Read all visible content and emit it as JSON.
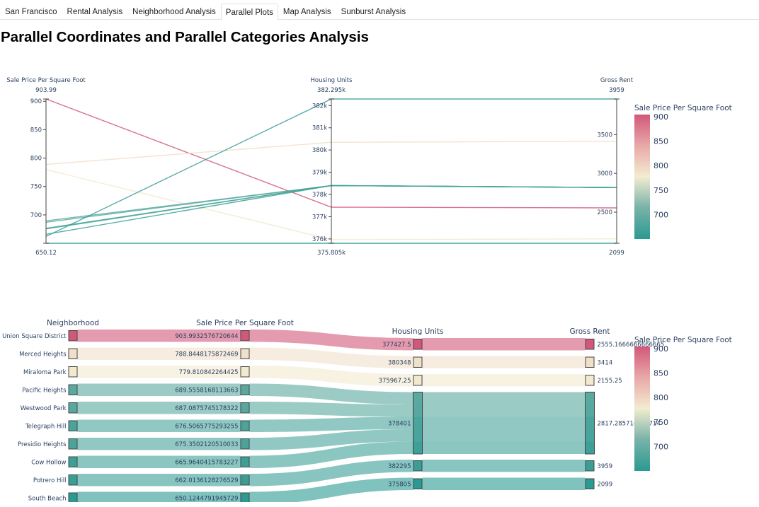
{
  "tabs": [
    {
      "label": "San Francisco",
      "active": false
    },
    {
      "label": "Rental Analysis",
      "active": false
    },
    {
      "label": "Neighborhood Analysis",
      "active": false
    },
    {
      "label": "Parallel Plots",
      "active": true
    },
    {
      "label": "Map Analysis",
      "active": false
    },
    {
      "label": "Sunburst Analysis",
      "active": false
    }
  ],
  "page_title": "Parallel Coordinates and Parallel Categories Analysis",
  "colors": {
    "scale": [
      "#2a9a92",
      "#78b2a8",
      "#f2ecd0",
      "#e8a8a8",
      "#d2587a"
    ],
    "ribbon_opacity": 0.6
  },
  "chart_data": [
    {
      "type": "parallel_coordinates",
      "colorbar_title": "Sale Price Per Square Foot",
      "colorbar_range": [
        650.12,
        903.99
      ],
      "colorbar_ticks": [
        700,
        750,
        800,
        850,
        900
      ],
      "dimensions": [
        {
          "label": "Sale Price Per Square Foot",
          "range": [
            650.12,
            903.99
          ],
          "range_labels": [
            "903.99",
            "650.12"
          ],
          "ticks": [
            700,
            750,
            800,
            850,
            900
          ],
          "tick_labels": [
            "700",
            "750",
            "800",
            "850",
            "900"
          ]
        },
        {
          "label": "Housing Units",
          "range": [
            375805,
            382295
          ],
          "range_labels": [
            "382.295k",
            "375.805k"
          ],
          "ticks": [
            376000,
            377000,
            378000,
            379000,
            380000,
            381000,
            382000
          ],
          "tick_labels": [
            "376k",
            "377k",
            "378k",
            "379k",
            "380k",
            "381k",
            "382k"
          ]
        },
        {
          "label": "Gross Rent",
          "range": [
            2099,
            3959
          ],
          "range_labels": [
            "3959",
            "2099"
          ],
          "ticks": [
            2500,
            3000,
            3500
          ],
          "tick_labels": [
            "2500",
            "3000",
            "3500"
          ]
        }
      ],
      "lines": [
        {
          "values": [
            903.99,
            377427.5,
            2555.17
          ]
        },
        {
          "values": [
            788.84,
            380348,
            3414
          ]
        },
        {
          "values": [
            779.81,
            375967.25,
            2155.25
          ]
        },
        {
          "values": [
            689.56,
            378401,
            2817.29
          ]
        },
        {
          "values": [
            687.09,
            378401,
            2817.29
          ]
        },
        {
          "values": [
            676.51,
            378401,
            2817.29
          ]
        },
        {
          "values": [
            675.35,
            378401,
            2817.29
          ]
        },
        {
          "values": [
            665.96,
            378401,
            2817.29
          ]
        },
        {
          "values": [
            662.01,
            382295,
            3959
          ]
        },
        {
          "values": [
            650.12,
            375805,
            2099
          ]
        }
      ]
    },
    {
      "type": "parallel_categories",
      "colorbar_title": "Sale Price Per Square Foot",
      "colorbar_range": [
        650.12,
        903.99
      ],
      "colorbar_ticks": [
        700,
        750,
        800,
        850,
        900
      ],
      "dimensions": [
        {
          "label": "Neighborhood",
          "categories": [
            "Union Square District",
            "Merced Heights",
            "Miraloma Park",
            "Pacific Heights",
            "Westwood Park",
            "Telegraph Hill",
            "Presidio Heights",
            "Cow Hollow",
            "Potrero Hill",
            "South Beach"
          ]
        },
        {
          "label": "Sale Price Per Square Foot",
          "categories": [
            "903.9932576720644",
            "788.8448175872469",
            "779.810842264425",
            "689.5558168113663",
            "687.0875745178322",
            "676.5065775293255",
            "675.3502120510033",
            "665.9640415783227",
            "662.0136128276529",
            "650.1244791945729"
          ]
        },
        {
          "label": "Housing Units",
          "categories": [
            "377427.5",
            "380348",
            "375967.25",
            "378401",
            "382295",
            "375805"
          ]
        },
        {
          "label": "Gross Rent",
          "categories": [
            "2555.1666666666665",
            "3414",
            "2155.25",
            "2817.285714285714",
            "3959",
            "2099"
          ]
        }
      ],
      "rows": [
        {
          "neighborhood": "Union Square District",
          "sale": 903.9932576720644,
          "units": "377427.5",
          "rent": "2555.1666666666665"
        },
        {
          "neighborhood": "Merced Heights",
          "sale": 788.8448175872469,
          "units": "380348",
          "rent": "3414"
        },
        {
          "neighborhood": "Miraloma Park",
          "sale": 779.810842264425,
          "units": "375967.25",
          "rent": "2155.25"
        },
        {
          "neighborhood": "Pacific Heights",
          "sale": 689.5558168113663,
          "units": "378401",
          "rent": "2817.285714285714"
        },
        {
          "neighborhood": "Westwood Park",
          "sale": 687.0875745178322,
          "units": "378401",
          "rent": "2817.285714285714"
        },
        {
          "neighborhood": "Telegraph Hill",
          "sale": 676.5065775293255,
          "units": "378401",
          "rent": "2817.285714285714"
        },
        {
          "neighborhood": "Presidio Heights",
          "sale": 675.3502120510033,
          "units": "378401",
          "rent": "2817.285714285714"
        },
        {
          "neighborhood": "Cow Hollow",
          "sale": 665.9640415783227,
          "units": "378401",
          "rent": "2817.285714285714"
        },
        {
          "neighborhood": "Potrero Hill",
          "sale": 662.0136128276529,
          "units": "382295",
          "rent": "3959"
        },
        {
          "neighborhood": "South Beach",
          "sale": 650.1244791945729,
          "units": "375805",
          "rent": "2099"
        }
      ]
    }
  ]
}
